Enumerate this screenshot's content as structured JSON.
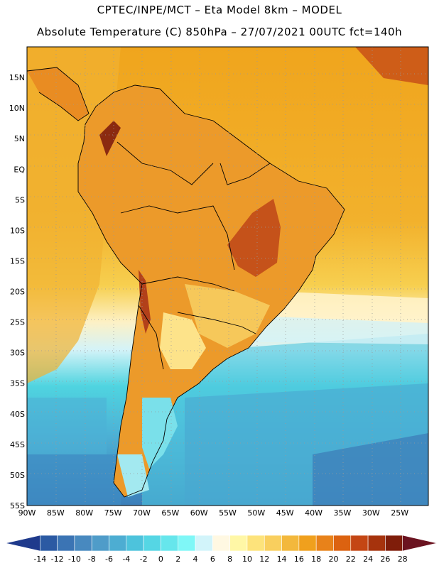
{
  "header": {
    "line1": "CPTEC/INPE/MCT –  Eta Model 8km – MODEL",
    "line2": "Absolute Temperature (C) 850hPa – 27/07/2021 00UTC fct=140h"
  },
  "map": {
    "lon_range": [
      -90,
      -20
    ],
    "lat_range": [
      -55,
      20
    ],
    "lat_labels": [
      "15N",
      "10N",
      "5N",
      "EQ",
      "5S",
      "10S",
      "15S",
      "20S",
      "25S",
      "30S",
      "35S",
      "40S",
      "45S",
      "50S",
      "55S"
    ],
    "lat_values": [
      15,
      10,
      5,
      0,
      -5,
      -10,
      -15,
      -20,
      -25,
      -30,
      -35,
      -40,
      -45,
      -50,
      -55
    ],
    "lon_labels": [
      "90W",
      "85W",
      "80W",
      "75W",
      "70W",
      "65W",
      "60W",
      "55W",
      "50W",
      "45W",
      "40W",
      "35W",
      "30W",
      "25W"
    ],
    "lon_values": [
      -90,
      -85,
      -80,
      -75,
      -70,
      -65,
      -60,
      -55,
      -50,
      -45,
      -40,
      -35,
      -30,
      -25
    ]
  },
  "legend": {
    "labels": [
      "-14",
      "-12",
      "-10",
      "-8",
      "-6",
      "-4",
      "-2",
      "0",
      "2",
      "4",
      "6",
      "8",
      "10",
      "12",
      "14",
      "16",
      "18",
      "20",
      "22",
      "24",
      "26",
      "28"
    ],
    "colors": [
      "#1f3a8c",
      "#2b5aa3",
      "#3b74b4",
      "#4889bf",
      "#4f9cc9",
      "#4dadd2",
      "#4dc3dc",
      "#55d6e4",
      "#66e6ec",
      "#7ff7f7",
      "#d2f4fa",
      "#fff8e2",
      "#fff7a6",
      "#fde37b",
      "#f9cf5e",
      "#f3b83c",
      "#f0a01d",
      "#e8821a",
      "#dc6210",
      "#c44614",
      "#a6330d",
      "#7f1d0a",
      "#6b1320"
    ]
  }
}
